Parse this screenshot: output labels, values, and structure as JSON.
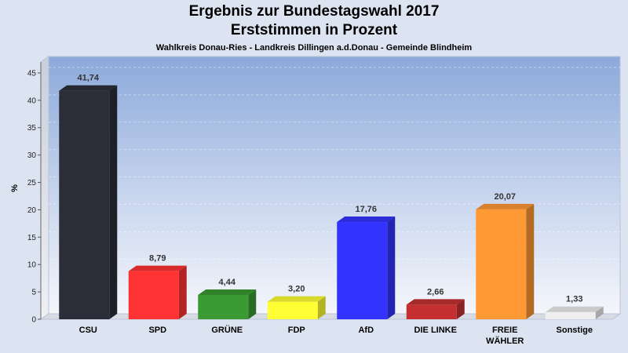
{
  "header": {
    "title_line1": "Ergebnis zur Bundestagswahl 2017",
    "title_line2": "Erststimmen in Prozent",
    "subtitle": "Wahlkreis Donau-Ries - Landkreis Dillingen a.d.Donau - Gemeinde Blindheim"
  },
  "chart_data": {
    "type": "bar",
    "title": "Ergebnis zur Bundestagswahl 2017 – Erststimmen in Prozent",
    "ylabel": "%",
    "ylim": [
      0,
      47
    ],
    "yticks": [
      0,
      5,
      10,
      15,
      20,
      25,
      30,
      35,
      40,
      45
    ],
    "grid": true,
    "categories": [
      "CSU",
      "SPD",
      "GRÜNE",
      "FDP",
      "AfD",
      "DIE LINKE",
      "FREIE WÄHLER",
      "Sonstige"
    ],
    "category_lines": [
      [
        "CSU"
      ],
      [
        "SPD"
      ],
      [
        "GRÜNE"
      ],
      [
        "FDP"
      ],
      [
        "AfD"
      ],
      [
        "DIE LINKE"
      ],
      [
        "FREIE",
        "WÄHLER"
      ],
      [
        "Sonstige"
      ]
    ],
    "values": [
      41.74,
      8.79,
      4.44,
      3.2,
      17.76,
      2.66,
      20.07,
      1.33
    ],
    "value_labels": [
      "41,74",
      "8,79",
      "4,44",
      "3,20",
      "17,76",
      "2,66",
      "20,07",
      "1,33"
    ],
    "colors": [
      "#2b2e38",
      "#ff3333",
      "#3a9a33",
      "#ffff33",
      "#3333ff",
      "#c43030",
      "#ff9933",
      "#eeeeee"
    ]
  }
}
